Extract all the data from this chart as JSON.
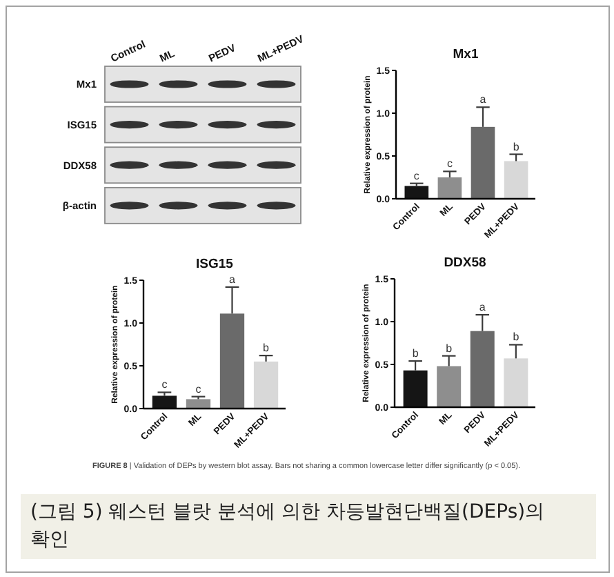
{
  "chart_data": [
    {
      "type": "other",
      "categories": [
        "Control",
        "ML",
        "PEDV",
        "ML+PEDV"
      ],
      "y_categories": [
        "Mx1",
        "ISG15",
        "DDX58",
        "β-actin"
      ]
    },
    {
      "type": "bar",
      "title": "Mx1",
      "ylabel": "Relative expression of protein",
      "categories": [
        "Control",
        "ML",
        "PEDV",
        "ML+PEDV"
      ],
      "values": [
        0.15,
        0.25,
        0.84,
        0.44
      ],
      "errors": [
        [
          0.15,
          0.18
        ],
        [
          0.25,
          0.32
        ],
        [
          0.84,
          1.07
        ],
        [
          0.44,
          0.52
        ]
      ],
      "colors": [
        "#151515",
        "#8e8e8e",
        "#6a6a6a",
        "#d8d8d8"
      ],
      "ylim": [
        0,
        1.5
      ],
      "yticks": [
        {
          "value": 0,
          "label": "0.0"
        },
        {
          "value": 0.5,
          "label": "0.5"
        },
        {
          "value": 1,
          "label": "1.0"
        },
        {
          "value": 1.5,
          "label": "1.5"
        }
      ],
      "annotations": [
        {
          "text": "c",
          "x": "Control",
          "y": 0.18
        },
        {
          "text": "c",
          "x": "ML",
          "y": 0.32
        },
        {
          "text": "a",
          "x": "PEDV",
          "y": 1.07
        },
        {
          "text": "b",
          "x": "ML+PEDV",
          "y": 0.52
        }
      ]
    },
    {
      "type": "bar",
      "title": "ISG15",
      "ylabel": "Relative expression of protein",
      "categories": [
        "Control",
        "ML",
        "PEDV",
        "ML+PEDV"
      ],
      "values": [
        0.15,
        0.11,
        1.11,
        0.55
      ],
      "errors": [
        [
          0.15,
          0.19
        ],
        [
          0.11,
          0.14
        ],
        [
          1.11,
          1.42
        ],
        [
          0.55,
          0.62
        ]
      ],
      "colors": [
        "#151515",
        "#8e8e8e",
        "#6a6a6a",
        "#d8d8d8"
      ],
      "ylim": [
        0,
        1.5
      ],
      "yticks": [
        {
          "value": 0,
          "label": "0.0"
        },
        {
          "value": 0.5,
          "label": "0.5"
        },
        {
          "value": 1,
          "label": "1.0"
        },
        {
          "value": 1.5,
          "label": "1.5"
        }
      ],
      "annotations": [
        {
          "text": "c",
          "x": "Control",
          "y": 0.19
        },
        {
          "text": "c",
          "x": "ML",
          "y": 0.14
        },
        {
          "text": "a",
          "x": "PEDV",
          "y": 1.42
        },
        {
          "text": "b",
          "x": "ML+PEDV",
          "y": 0.62
        }
      ]
    },
    {
      "type": "bar",
      "title": "DDX58",
      "ylabel": "Relative expression of protein",
      "categories": [
        "Control",
        "ML",
        "PEDV",
        "ML+PEDV"
      ],
      "values": [
        0.43,
        0.48,
        0.89,
        0.57
      ],
      "errors": [
        [
          0.43,
          0.54
        ],
        [
          0.48,
          0.6
        ],
        [
          0.89,
          1.08
        ],
        [
          0.57,
          0.73
        ]
      ],
      "colors": [
        "#151515",
        "#8e8e8e",
        "#6a6a6a",
        "#d8d8d8"
      ],
      "ylim": [
        0,
        1.5
      ],
      "yticks": [
        {
          "value": 0,
          "label": "0.0"
        },
        {
          "value": 0.5,
          "label": "0.5"
        },
        {
          "value": 1,
          "label": "1.0"
        },
        {
          "value": 1.5,
          "label": "1.5"
        }
      ],
      "annotations": [
        {
          "text": "b",
          "x": "Control",
          "y": 0.54
        },
        {
          "text": "b",
          "x": "ML",
          "y": 0.6
        },
        {
          "text": "a",
          "x": "PEDV",
          "y": 1.08
        },
        {
          "text": "b",
          "x": "ML+PEDV",
          "y": 0.73
        }
      ]
    },
    {
      "type": "other",
      "title": "(그림 5) 웨스턴 블랏 분석에 의한 차등발현단백질(DEPs)의 확인",
      "annotations": [
        "FIGURE 8 | Validation of DEPs by western blot assay. Bars not sharing a common lowercase letter differ significantly (p < 0.05)."
      ]
    }
  ]
}
